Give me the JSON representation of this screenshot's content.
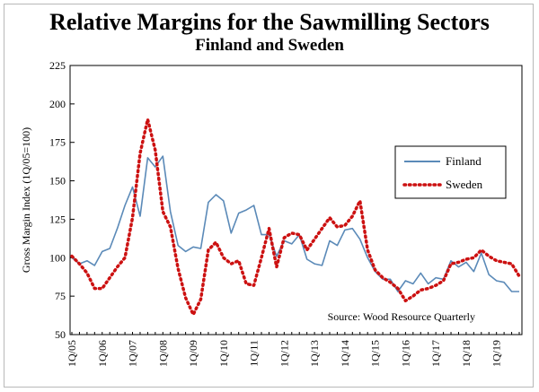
{
  "chart_data": {
    "type": "line",
    "title": "Relative Margins for the Sawmilling Sectors",
    "subtitle": "Finland and Sweden",
    "ylabel": "Gross Margin Index (1Q/05=100)",
    "xlabel": "",
    "ylim": [
      50,
      225
    ],
    "yticks": [
      50,
      75,
      100,
      125,
      150,
      175,
      200,
      225
    ],
    "x_tick_labels": [
      "1Q/05",
      "1Q/06",
      "1Q/07",
      "1Q/08",
      "1Q/09",
      "1Q/10",
      "1Q/11",
      "1Q/12",
      "1Q/13",
      "1Q/14",
      "1Q/15",
      "1Q/16",
      "1Q/17",
      "1Q/18",
      "1Q/19"
    ],
    "x_tick_index": [
      0,
      4,
      8,
      12,
      16,
      20,
      24,
      28,
      32,
      36,
      40,
      44,
      48,
      52,
      56
    ],
    "n_points": 60,
    "source_note": "Source: Wood Resource Quarterly",
    "legend_position": "right",
    "series": [
      {
        "name": "Finland",
        "style": "solid",
        "color": "#5b8ab8",
        "values": [
          100,
          96,
          98,
          95,
          104,
          106,
          119,
          134,
          146,
          127,
          165,
          159,
          166,
          130,
          108,
          104,
          107,
          106,
          136,
          141,
          137,
          116,
          129,
          131,
          134,
          115,
          115,
          101,
          111,
          109,
          115,
          99,
          96,
          95,
          111,
          108,
          118,
          119,
          112,
          100,
          91,
          86,
          86,
          78,
          85,
          83,
          90,
          83,
          87,
          86,
          98,
          94,
          97,
          91,
          103,
          89,
          85,
          84,
          78,
          78
        ]
      },
      {
        "name": "Sweden",
        "style": "dotted",
        "color": "#cc1111",
        "values": [
          101,
          96,
          90,
          80,
          80,
          87,
          94,
          100,
          126,
          168,
          190,
          170,
          130,
          120,
          93,
          74,
          63,
          73,
          105,
          110,
          100,
          96,
          98,
          83,
          82,
          100,
          119,
          94,
          113,
          116,
          115,
          105,
          112,
          119,
          126,
          120,
          121,
          127,
          137,
          105,
          92,
          87,
          84,
          80,
          72,
          75,
          79,
          80,
          82,
          85,
          96,
          97,
          99,
          100,
          105,
          101,
          98,
          97,
          96,
          88
        ]
      }
    ]
  }
}
